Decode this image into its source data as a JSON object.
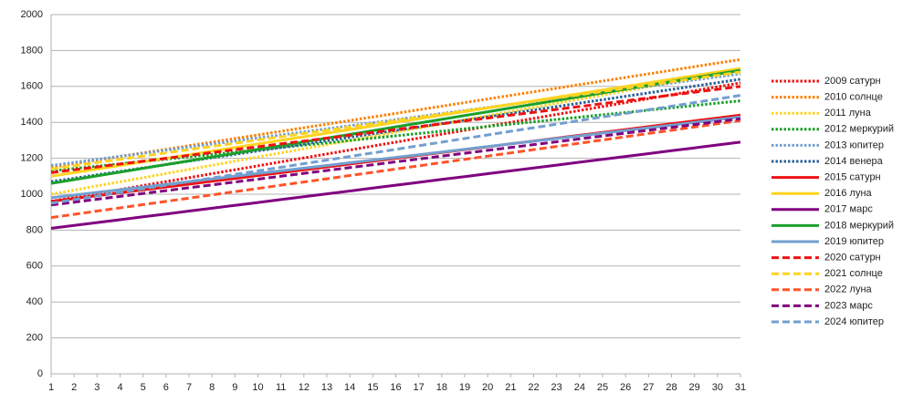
{
  "chart_data": {
    "type": "line",
    "x": [
      1,
      2,
      3,
      4,
      5,
      6,
      7,
      8,
      9,
      10,
      11,
      12,
      13,
      14,
      15,
      16,
      17,
      18,
      19,
      20,
      21,
      22,
      23,
      24,
      25,
      26,
      27,
      28,
      29,
      30,
      31
    ],
    "xlim": [
      1,
      31
    ],
    "ylim": [
      0,
      2000
    ],
    "yticks": [
      0,
      200,
      400,
      600,
      800,
      1000,
      1200,
      1400,
      1600,
      1800,
      2000
    ],
    "grid": true,
    "legend": "right",
    "series": [
      {
        "name": "2009 сатурн",
        "color": "#ee1111",
        "style": "dotted",
        "values": [
          960,
          982,
          1004,
          1026,
          1048,
          1070,
          1092,
          1114,
          1136,
          1158,
          1180,
          1202,
          1224,
          1246,
          1268,
          1290,
          1312,
          1334,
          1356,
          1378,
          1400,
          1422,
          1444,
          1466,
          1488,
          1510,
          1532,
          1554,
          1576,
          1598,
          1620
        ]
      },
      {
        "name": "2010 солнце",
        "color": "#ff8000",
        "style": "dotted",
        "values": [
          1150,
          1170,
          1190,
          1210,
          1230,
          1250,
          1270,
          1290,
          1310,
          1330,
          1350,
          1370,
          1390,
          1410,
          1430,
          1450,
          1470,
          1490,
          1510,
          1530,
          1550,
          1570,
          1590,
          1610,
          1630,
          1650,
          1670,
          1690,
          1710,
          1730,
          1750
        ]
      },
      {
        "name": "2011 луна",
        "color": "#ffd320",
        "style": "dotted",
        "values": [
          1000,
          1023,
          1046,
          1069,
          1092,
          1115,
          1138,
          1161,
          1184,
          1207,
          1230,
          1253,
          1276,
          1299,
          1322,
          1345,
          1368,
          1391,
          1414,
          1437,
          1460,
          1483,
          1506,
          1529,
          1552,
          1575,
          1598,
          1621,
          1644,
          1667,
          1690
        ]
      },
      {
        "name": "2012 меркурий",
        "color": "#1aa02a",
        "style": "dotted",
        "values": [
          1130,
          1143,
          1156,
          1169,
          1182,
          1195,
          1208,
          1221,
          1234,
          1247,
          1260,
          1273,
          1286,
          1299,
          1312,
          1325,
          1338,
          1351,
          1364,
          1377,
          1390,
          1403,
          1416,
          1429,
          1442,
          1455,
          1468,
          1481,
          1494,
          1507,
          1520
        ]
      },
      {
        "name": "2013 юпитер",
        "color": "#729fcf",
        "style": "dotted",
        "values": [
          1160,
          1177,
          1194,
          1211,
          1228,
          1245,
          1262,
          1279,
          1296,
          1313,
          1330,
          1347,
          1364,
          1381,
          1398,
          1415,
          1432,
          1449,
          1466,
          1483,
          1500,
          1517,
          1534,
          1551,
          1568,
          1585,
          1602,
          1619,
          1636,
          1653,
          1670
        ]
      },
      {
        "name": "2014 венера",
        "color": "#2a6099",
        "style": "dotted",
        "values": [
          1070,
          1089,
          1108,
          1127,
          1146,
          1165,
          1184,
          1203,
          1222,
          1241,
          1260,
          1279,
          1298,
          1317,
          1336,
          1355,
          1374,
          1393,
          1412,
          1431,
          1450,
          1469,
          1488,
          1507,
          1526,
          1545,
          1564,
          1583,
          1602,
          1621,
          1640
        ]
      },
      {
        "name": "2015 сатурн",
        "color": "#ee1111",
        "style": "solid",
        "values": [
          960,
          976,
          992,
          1008,
          1024,
          1040,
          1056,
          1072,
          1088,
          1104,
          1120,
          1136,
          1152,
          1168,
          1184,
          1200,
          1216,
          1232,
          1248,
          1264,
          1280,
          1296,
          1312,
          1328,
          1344,
          1360,
          1376,
          1392,
          1408,
          1424,
          1440
        ]
      },
      {
        "name": "2016 луна",
        "color": "#ffd320",
        "style": "solid",
        "values": [
          1100,
          1120,
          1140,
          1160,
          1180,
          1200,
          1220,
          1240,
          1260,
          1280,
          1300,
          1320,
          1340,
          1360,
          1380,
          1400,
          1420,
          1440,
          1460,
          1480,
          1500,
          1520,
          1540,
          1560,
          1580,
          1600,
          1620,
          1640,
          1660,
          1680,
          1700
        ]
      },
      {
        "name": "2017 марс",
        "color": "#800080",
        "style": "solid",
        "values": [
          810,
          826,
          842,
          858,
          874,
          890,
          906,
          922,
          938,
          954,
          970,
          986,
          1002,
          1018,
          1034,
          1050,
          1066,
          1082,
          1098,
          1114,
          1130,
          1146,
          1162,
          1178,
          1194,
          1210,
          1226,
          1242,
          1258,
          1274,
          1290
        ]
      },
      {
        "name": "2018 меркурий",
        "color": "#1aa02a",
        "style": "solid",
        "values": [
          1060,
          1081,
          1102,
          1123,
          1144,
          1165,
          1186,
          1207,
          1228,
          1249,
          1270,
          1291,
          1312,
          1333,
          1354,
          1375,
          1396,
          1417,
          1438,
          1459,
          1480,
          1501,
          1522,
          1543,
          1564,
          1585,
          1606,
          1627,
          1648,
          1669,
          1690
        ]
      },
      {
        "name": "2019 юпитер",
        "color": "#729fcf",
        "style": "solid",
        "values": [
          980,
          995,
          1010,
          1025,
          1040,
          1055,
          1070,
          1085,
          1100,
          1115,
          1130,
          1145,
          1160,
          1175,
          1190,
          1205,
          1220,
          1235,
          1250,
          1265,
          1280,
          1295,
          1310,
          1325,
          1340,
          1355,
          1370,
          1385,
          1400,
          1415,
          1430
        ]
      },
      {
        "name": "2020 сатурн",
        "color": "#ee1111",
        "style": "dashed",
        "values": [
          1120,
          1136,
          1152,
          1168,
          1184,
          1200,
          1216,
          1232,
          1248,
          1264,
          1280,
          1296,
          1312,
          1328,
          1344,
          1360,
          1376,
          1392,
          1408,
          1424,
          1440,
          1456,
          1472,
          1488,
          1504,
          1520,
          1536,
          1552,
          1568,
          1584,
          1600
        ]
      },
      {
        "name": "2021 солнце",
        "color": "#ffd320",
        "style": "dashed",
        "values": [
          1140,
          1158,
          1176,
          1194,
          1212,
          1230,
          1248,
          1266,
          1284,
          1302,
          1320,
          1338,
          1356,
          1374,
          1392,
          1410,
          1428,
          1446,
          1464,
          1482,
          1500,
          1518,
          1536,
          1554,
          1572,
          1590,
          1608,
          1626,
          1644,
          1662,
          1680
        ]
      },
      {
        "name": "2022 луна",
        "color": "#ff5429",
        "style": "dashed",
        "values": [
          870,
          888,
          906,
          924,
          942,
          960,
          978,
          996,
          1014,
          1032,
          1050,
          1068,
          1086,
          1104,
          1122,
          1140,
          1158,
          1176,
          1194,
          1212,
          1230,
          1248,
          1266,
          1284,
          1302,
          1320,
          1338,
          1356,
          1374,
          1392,
          1410
        ]
      },
      {
        "name": "2023 марс",
        "color": "#800080",
        "style": "dashed",
        "values": [
          940,
          956,
          972,
          988,
          1004,
          1020,
          1036,
          1052,
          1068,
          1084,
          1100,
          1116,
          1132,
          1148,
          1164,
          1180,
          1196,
          1212,
          1228,
          1244,
          1260,
          1276,
          1292,
          1308,
          1324,
          1340,
          1356,
          1372,
          1388,
          1404,
          1420
        ]
      },
      {
        "name": "2024 юпитер",
        "color": "#729fcf",
        "style": "dashed",
        "values": [
          950,
          970,
          990,
          1010,
          1030,
          1050,
          1070,
          1090,
          1110,
          1130,
          1150,
          1170,
          1190,
          1210,
          1230,
          1250,
          1270,
          1290,
          1310,
          1330,
          1350,
          1370,
          1390,
          1410,
          1430,
          1450,
          1470,
          1490,
          1510,
          1530,
          1550
        ]
      }
    ]
  }
}
